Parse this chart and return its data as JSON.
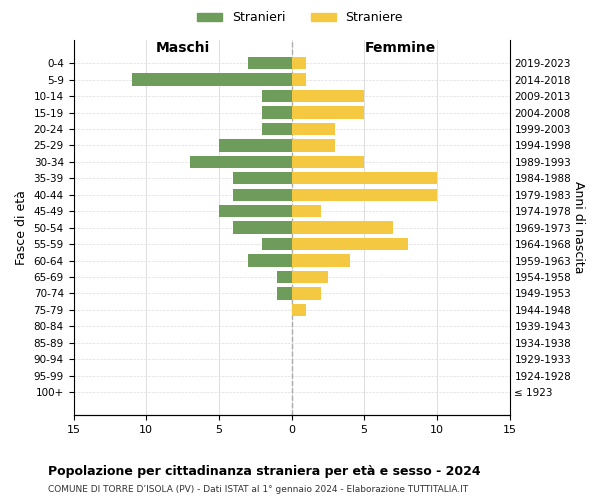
{
  "age_groups": [
    "100+",
    "95-99",
    "90-94",
    "85-89",
    "80-84",
    "75-79",
    "70-74",
    "65-69",
    "60-64",
    "55-59",
    "50-54",
    "45-49",
    "40-44",
    "35-39",
    "30-34",
    "25-29",
    "20-24",
    "15-19",
    "10-14",
    "5-9",
    "0-4"
  ],
  "birth_years": [
    "≤ 1923",
    "1924-1928",
    "1929-1933",
    "1934-1938",
    "1939-1943",
    "1944-1948",
    "1949-1953",
    "1954-1958",
    "1959-1963",
    "1964-1968",
    "1969-1973",
    "1974-1978",
    "1979-1983",
    "1984-1988",
    "1989-1993",
    "1994-1998",
    "1999-2003",
    "2004-2008",
    "2009-2013",
    "2014-2018",
    "2019-2023"
  ],
  "maschi": [
    0,
    0,
    0,
    0,
    0,
    0,
    1,
    1,
    3,
    2,
    4,
    5,
    4,
    4,
    7,
    5,
    2,
    2,
    2,
    11,
    3
  ],
  "femmine": [
    0,
    0,
    0,
    0,
    0,
    1,
    2,
    2.5,
    4,
    8,
    7,
    2,
    10,
    10,
    5,
    3,
    3,
    5,
    5,
    1,
    1
  ],
  "color_maschi": "#6e9c5a",
  "color_femmine": "#f5c842",
  "title": "Popolazione per cittadinanza straniera per età e sesso - 2024",
  "subtitle": "COMUNE DI TORRE D’ISOLA (PV) - Dati ISTAT al 1° gennaio 2024 - Elaborazione TUTTITALIA.IT",
  "xlabel_left": "Maschi",
  "xlabel_right": "Femmine",
  "ylabel_left": "Fasce di età",
  "ylabel_right": "Anni di nascita",
  "legend_maschi": "Stranieri",
  "legend_femmine": "Straniere",
  "xlim": 15,
  "background_color": "#ffffff",
  "grid_color": "#dddddd"
}
